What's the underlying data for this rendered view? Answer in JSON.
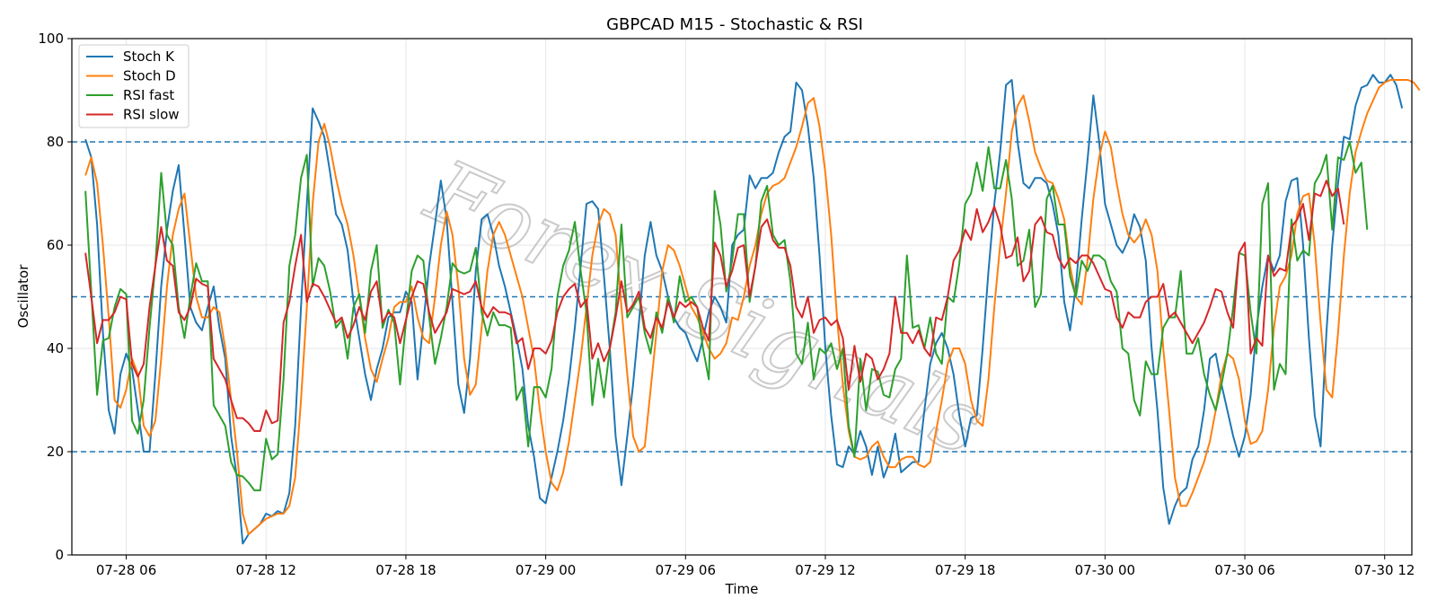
{
  "watermark": "Forex Signals",
  "chart_data": {
    "type": "line",
    "title": "GBPCAD M15 - Stochastic & RSI",
    "xlabel": "Time",
    "ylabel": "Oscillator",
    "ylim": [
      0,
      100
    ],
    "xlim": [
      "07-28 03:40",
      "07-30 13:10"
    ],
    "x_start": "07-28 04:15",
    "x_step_minutes": 15,
    "yticks": [
      0,
      20,
      40,
      60,
      80,
      100
    ],
    "xticks": [
      {
        "label": "07-28 06",
        "at": "07-28 06:00"
      },
      {
        "label": "07-28 12",
        "at": "07-28 12:00"
      },
      {
        "label": "07-28 18",
        "at": "07-28 18:00"
      },
      {
        "label": "07-29 00",
        "at": "07-29 00:00"
      },
      {
        "label": "07-29 06",
        "at": "07-29 06:00"
      },
      {
        "label": "07-29 12",
        "at": "07-29 12:00"
      },
      {
        "label": "07-29 18",
        "at": "07-29 18:00"
      },
      {
        "label": "07-30 00",
        "at": "07-30 00:00"
      },
      {
        "label": "07-30 06",
        "at": "07-30 06:00"
      },
      {
        "label": "07-30 12",
        "at": "07-30 12:00"
      }
    ],
    "grid": true,
    "legend": "top-left",
    "reference_lines": [
      {
        "y": 80,
        "color": "#1f77b4",
        "style": "dashed"
      },
      {
        "y": 50,
        "color": "#1f77b4",
        "style": "dashed"
      },
      {
        "y": 20,
        "color": "#1f77b4",
        "style": "dashed"
      }
    ],
    "series": [
      {
        "name": "Stoch K",
        "color": "#1f77b4",
        "values": [
          80.5,
          77,
          64,
          43,
          28,
          23.5,
          35,
          39,
          36,
          28,
          20,
          20,
          35,
          52,
          63,
          70.5,
          75.5,
          62,
          48,
          45,
          43.5,
          48,
          52,
          44,
          38,
          23,
          15,
          2.2,
          4,
          5,
          6,
          8,
          7.5,
          8.5,
          8,
          12,
          25,
          48,
          68,
          86.5,
          84,
          81,
          74,
          66,
          64,
          59,
          49,
          42,
          35,
          30,
          36,
          40,
          46,
          47,
          47,
          51,
          49,
          34,
          45,
          56,
          64,
          72.5,
          65,
          49,
          33,
          27.5,
          38,
          55,
          65,
          66,
          62,
          56,
          52,
          47,
          42,
          36,
          25,
          19,
          11,
          10,
          15,
          20,
          26,
          34,
          44,
          56,
          68,
          68.5,
          67,
          54,
          40,
          23,
          13.5,
          23,
          33,
          45,
          58,
          64.5,
          58,
          55,
          50,
          46,
          44,
          43,
          40,
          37.5,
          42,
          47,
          50,
          48,
          45,
          60,
          62,
          63,
          73.5,
          71,
          73,
          73,
          74,
          78,
          81,
          82,
          91.5,
          90,
          83,
          73,
          58,
          40,
          27,
          17.5,
          17,
          21,
          19.5,
          24,
          21,
          15.5,
          21,
          15,
          18,
          23.5,
          16,
          17,
          18,
          18,
          28,
          37,
          41,
          43,
          40,
          35,
          27,
          21,
          26.5,
          27,
          40,
          55,
          68,
          78,
          91,
          92,
          80,
          72,
          71,
          73,
          73,
          72,
          68,
          62,
          49,
          43.5,
          52,
          65,
          76.5,
          89,
          80,
          68,
          64,
          60,
          58.5,
          61,
          66,
          63.5,
          57,
          40,
          28,
          13,
          6,
          9.5,
          12,
          13,
          18.5,
          21,
          28,
          38,
          39,
          33,
          28,
          23,
          19,
          23,
          31,
          44,
          52,
          58,
          55,
          58,
          68.5,
          72.5,
          73,
          60,
          42,
          27,
          21,
          43,
          60,
          72,
          81,
          80.5,
          87,
          90.5,
          91,
          93,
          91.5,
          91.5,
          93,
          91,
          86.5
        ]
      },
      {
        "name": "Stoch D",
        "color": "#ff7f0e",
        "values": [
          73.5,
          77,
          72,
          60,
          46,
          30,
          28.5,
          32,
          38,
          35,
          25,
          23,
          26,
          38,
          52,
          62,
          67,
          70,
          60,
          50,
          46,
          46,
          48,
          47,
          40,
          30,
          20,
          8,
          4,
          5,
          6,
          7,
          7.5,
          8,
          8,
          9.5,
          15,
          30,
          48,
          68,
          80,
          83.5,
          79,
          73,
          68,
          64,
          58,
          50,
          42,
          36,
          33.5,
          38,
          42,
          48,
          49,
          49,
          52,
          46,
          42,
          41,
          50,
          60,
          66.5,
          62,
          52,
          38,
          31,
          33,
          44,
          55,
          62,
          64.5,
          62,
          58,
          54,
          50,
          44,
          38,
          28,
          20,
          14,
          12.5,
          16,
          22,
          30,
          38,
          48,
          58,
          64,
          67,
          66,
          62,
          48,
          35,
          23,
          20,
          21,
          32,
          43,
          55,
          60,
          59,
          56,
          52,
          48,
          46,
          43,
          40,
          38,
          39,
          41,
          46,
          45.5,
          50,
          56,
          60,
          66,
          70,
          71.5,
          72,
          73,
          76,
          79,
          83,
          87.5,
          88.5,
          83,
          74,
          62,
          46,
          33,
          24,
          19,
          18.5,
          19,
          21,
          22,
          19,
          17,
          17,
          18.5,
          19,
          19,
          17.5,
          17,
          18,
          24,
          30,
          37,
          40,
          40,
          37,
          30,
          26,
          25,
          34,
          48,
          60,
          70,
          82,
          87,
          89,
          84,
          78,
          75,
          72.5,
          72,
          69,
          65,
          56,
          50,
          48.5,
          57,
          69,
          77,
          82,
          79,
          72,
          66,
          62,
          60.5,
          62,
          65,
          62,
          55,
          40,
          28,
          15,
          9.5,
          9.5,
          12,
          15,
          18,
          22,
          28,
          35,
          39,
          38,
          34,
          26,
          21.5,
          22,
          24,
          32,
          44,
          52,
          54,
          58,
          66,
          69.5,
          70,
          60,
          45,
          32,
          30.5,
          43,
          58,
          70,
          78,
          82,
          85.5,
          88,
          90.5,
          91.5,
          92,
          92,
          92,
          92,
          91.5,
          90
        ]
      },
      {
        "name": "RSI fast",
        "color": "#2ca02c",
        "values": [
          70.5,
          51,
          31,
          41.5,
          42,
          48,
          51.5,
          50.5,
          26,
          23.5,
          30,
          44,
          56,
          74,
          62,
          60,
          48,
          42,
          50,
          56.5,
          53,
          53,
          29,
          27,
          25,
          18,
          15.5,
          15.2,
          14,
          12.5,
          12.5,
          22.5,
          18.5,
          19.5,
          34,
          56,
          62,
          73,
          77.5,
          52,
          57.5,
          56,
          51,
          44,
          45.5,
          38,
          48,
          50.5,
          43,
          55,
          60,
          44,
          47.5,
          45,
          33,
          45,
          55,
          58,
          57,
          46,
          37,
          42,
          48,
          56.5,
          55,
          54.5,
          55,
          59.5,
          47,
          42.5,
          47,
          44.5,
          44.5,
          44,
          30,
          32.5,
          21,
          32.5,
          32.5,
          30.5,
          36,
          50,
          56,
          59,
          64.5,
          55,
          47,
          29,
          38,
          30.5,
          40,
          47,
          64,
          46,
          48,
          50,
          43,
          39,
          47,
          43,
          50,
          45,
          54,
          49,
          50,
          48,
          40,
          34,
          70.5,
          64,
          51,
          57,
          66,
          66,
          49,
          56,
          68.5,
          71.5,
          62,
          60,
          61,
          53,
          39,
          37,
          45,
          34,
          40,
          39,
          41,
          36,
          40,
          25,
          19,
          38,
          28,
          36,
          35.5,
          31,
          30.5,
          36,
          38,
          58,
          44,
          44.5,
          40,
          46,
          39,
          37,
          50,
          49,
          56.5,
          68,
          70,
          76,
          70.5,
          79,
          71,
          71,
          76.5,
          69,
          56,
          57,
          63,
          48,
          50.5,
          69,
          71.5,
          64,
          64,
          54,
          50,
          57,
          55,
          58,
          58,
          57,
          53,
          51,
          40,
          39,
          30,
          27,
          37.5,
          35,
          35,
          44,
          46,
          46,
          55,
          39,
          39,
          42,
          35,
          31,
          28,
          33,
          39,
          48,
          58.5,
          58,
          47,
          39,
          68,
          72,
          32,
          37,
          35,
          65,
          57,
          59,
          58,
          72,
          74,
          77.5,
          63,
          77,
          76.5,
          80,
          74,
          76,
          63
        ]
      },
      {
        "name": "RSI slow",
        "color": "#d62728",
        "values": [
          58.5,
          50,
          41,
          45.5,
          45.5,
          47,
          50,
          49.5,
          37,
          34.5,
          37,
          48,
          56,
          63.5,
          57,
          56,
          47,
          45.5,
          48,
          53.5,
          52.5,
          52,
          38,
          36,
          34,
          30,
          26.5,
          26.5,
          25.5,
          24,
          24,
          28,
          25.5,
          26,
          45,
          49,
          56,
          62,
          49,
          52.5,
          52,
          50,
          47.5,
          45,
          46,
          42,
          44.5,
          48,
          45.5,
          51,
          53,
          45,
          47,
          46,
          41,
          45.5,
          50,
          53,
          52.5,
          47,
          43,
          45,
          47,
          51.5,
          51,
          50.5,
          51,
          53,
          48,
          46,
          48,
          47,
          47,
          46.5,
          41,
          42,
          36,
          40,
          40,
          39,
          41.5,
          47,
          50,
          51.5,
          52.5,
          48,
          49.5,
          38,
          41,
          37.5,
          40,
          46,
          53,
          47,
          48.5,
          51,
          44,
          42,
          46,
          44,
          49,
          46,
          49,
          48,
          49,
          48,
          44,
          41.5,
          60.5,
          58,
          52,
          55,
          59.5,
          60,
          50,
          56,
          63.5,
          65,
          61,
          59.5,
          59.5,
          56,
          48,
          46,
          50,
          43,
          45.5,
          46,
          44.5,
          45.5,
          42,
          32,
          40.5,
          33.5,
          39,
          38,
          34,
          36,
          39,
          50,
          43,
          43,
          41,
          43.5,
          40,
          38.5,
          46,
          45.5,
          50,
          57,
          59,
          63,
          61,
          67,
          62.5,
          64.5,
          67.5,
          64,
          57.5,
          58,
          61.5,
          53,
          55,
          64,
          65.5,
          62.5,
          62,
          57.5,
          55.5,
          57.5,
          56.5,
          58,
          58,
          56.5,
          54,
          51.5,
          51,
          46,
          44,
          47,
          46,
          46,
          49,
          50,
          50,
          52.5,
          46,
          47,
          45,
          43,
          41,
          43,
          45,
          48,
          51.5,
          51,
          47,
          44,
          58.5,
          60.5,
          39,
          42,
          40.5,
          58,
          54,
          55.5,
          55,
          63.5,
          65,
          68,
          61,
          70,
          69.5,
          72.5,
          69.5,
          71,
          64
        ]
      }
    ]
  }
}
